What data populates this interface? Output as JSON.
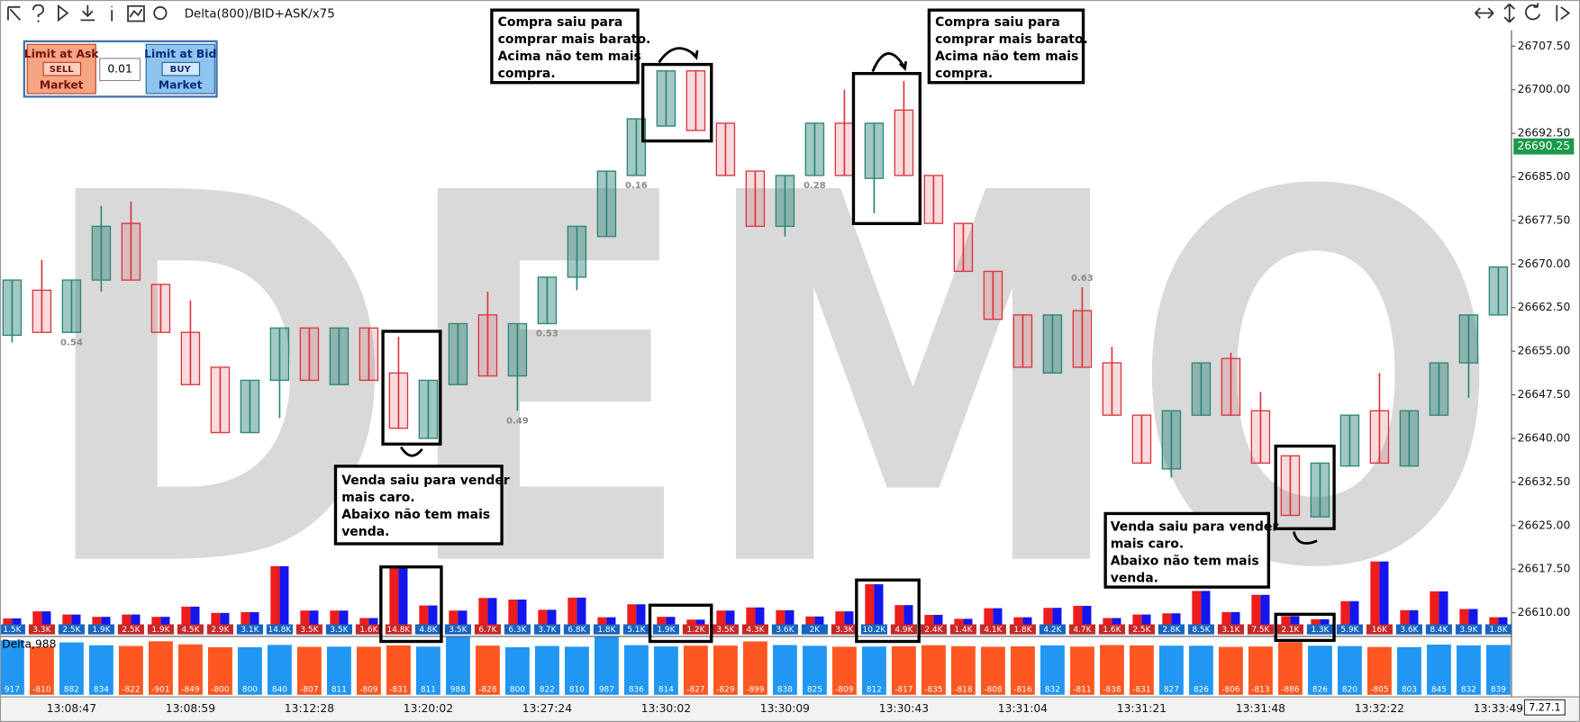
{
  "toolbar": {
    "title": "Delta(800)/BID+ASK/x75"
  },
  "order_panel": {
    "ask_label": "Limit at Ask",
    "sell": "SELL",
    "ask_market": "Market",
    "quantity": "0.01",
    "bid_label": "Limit at Bid",
    "buy": "BUY",
    "bid_market": "Market"
  },
  "watermark": "DEMO",
  "version": "7.27.1",
  "annotations": [
    {
      "lines": [
        "Compra saiu para",
        "comprar mais barato.",
        "Acima não tem mais",
        "compra."
      ]
    },
    {
      "lines": [
        "Compra saiu para",
        "comprar mais barato.",
        "Acima não tem mais",
        "compra."
      ]
    },
    {
      "lines": [
        "Venda saiu para vender",
        "mais caro.",
        "Abaixo não tem mais",
        "venda."
      ]
    },
    {
      "lines": [
        "Venda saiu para vender",
        "mais caro.",
        "Abaixo não tem mais",
        "venda."
      ]
    }
  ],
  "chart_data": [
    {
      "type": "candlestick",
      "categories": [
        null,
        null,
        "13:08:47",
        null,
        null,
        null,
        "13:08:59",
        null,
        null,
        null,
        "13:12:28",
        null,
        null,
        null,
        "13:20:02",
        null,
        null,
        null,
        "13:27:24",
        null,
        null,
        null,
        "13:30:02",
        null,
        null,
        null,
        "13:30:09",
        null,
        null,
        null,
        "13:30:43",
        null,
        null,
        null,
        "13:31:04",
        null,
        null,
        null,
        "13:31:21",
        null,
        null,
        null,
        "13:31:48",
        null,
        null,
        null,
        "13:32:22",
        null,
        null,
        null,
        "13:33:49"
      ],
      "open": [
        26657.75,
        26665.5,
        26658.25,
        26667.25,
        26677,
        26666.5,
        26658.25,
        26652.25,
        26641,
        26650,
        26659,
        26649.25,
        26659,
        26651.25,
        26640,
        26649.25,
        26661.25,
        26650.75,
        26659.75,
        26667.75,
        26674.75,
        26685.25,
        26693.75,
        26703.25,
        26694.25,
        26686,
        26676.5,
        26685.25,
        26694.25,
        26684.75,
        26696.5,
        26685.25,
        26677,
        26668.75,
        26661.25,
        26651.25,
        26662,
        26653,
        26644,
        26634.75,
        26644,
        26653.75,
        26644.75,
        26637,
        26626.5,
        26635.25,
        26644.75,
        26635.25,
        26644,
        26653,
        26661.25
      ],
      "high": [
        26667.25,
        26670.75,
        26667.25,
        26680,
        26680.75,
        26666.5,
        26663.75,
        26652.25,
        26650,
        26659,
        26659,
        26659,
        26659,
        26657.5,
        26650,
        26659.75,
        26665.25,
        26659.75,
        26667.75,
        26676.5,
        26686,
        26695,
        26703.25,
        26703.25,
        26694.25,
        26686,
        26685.25,
        26694.25,
        26700,
        26694.25,
        26701.5,
        26685.25,
        26677,
        26668.75,
        26661.25,
        26661.25,
        26666,
        26655.75,
        26644,
        26644.75,
        26653,
        26654.75,
        26648,
        26637,
        26635.75,
        26644,
        26651.25,
        26644.75,
        26653,
        26661.25,
        26669.5
      ],
      "low": [
        26656.5,
        26658.25,
        26658.25,
        26665.25,
        26667.25,
        26658.25,
        26649.25,
        26641,
        26641,
        26643.5,
        26650,
        26649.25,
        26650,
        26641.75,
        26640,
        26649.25,
        26650.75,
        26644.75,
        26659.75,
        26665.5,
        26674.75,
        26685.25,
        26693.75,
        26693,
        26685.25,
        26676.5,
        26674.75,
        26685.25,
        26685.25,
        26678.75,
        26685.25,
        26677,
        26668.75,
        26660.5,
        26652.25,
        26651.25,
        26652.25,
        26644,
        26635.75,
        26633.25,
        26644,
        26644,
        26635.75,
        26626.75,
        26626.5,
        26635.25,
        26635.75,
        26635.25,
        26644,
        26647,
        26661.25
      ],
      "close": [
        26667.25,
        26658.25,
        26667.25,
        26676.5,
        26667.25,
        26658.25,
        26649.25,
        26641,
        26650,
        26659,
        26650,
        26659,
        26650,
        26641.75,
        26650,
        26659.75,
        26650.75,
        26659.75,
        26667.75,
        26676.5,
        26686,
        26695,
        26703.25,
        26693,
        26685.25,
        26676.5,
        26685.25,
        26694.25,
        26685.25,
        26694.25,
        26685.25,
        26677,
        26668.75,
        26660.5,
        26652.25,
        26661.25,
        26652.25,
        26644,
        26635.75,
        26644.75,
        26653,
        26644,
        26635.75,
        26626.75,
        26635.75,
        26644,
        26635.75,
        26644.75,
        26653,
        26661.25,
        26669.5
      ],
      "ratios": [
        null,
        null,
        0.54,
        null,
        null,
        null,
        null,
        null,
        null,
        null,
        null,
        null,
        null,
        null,
        null,
        null,
        null,
        0.49,
        0.53,
        null,
        null,
        0.16,
        null,
        null,
        null,
        null,
        null,
        0.28,
        null,
        null,
        null,
        null,
        null,
        null,
        null,
        null,
        0.63,
        null,
        null,
        null,
        null,
        null,
        null,
        null,
        null,
        null,
        null,
        null,
        null,
        null,
        null
      ],
      "ylim": [
        26605.75,
        26710.25
      ],
      "yticks": [
        {
          "value": 26707.5,
          "label": "26707.50"
        },
        {
          "value": 26700,
          "label": "26700.00"
        },
        {
          "value": 26692.5,
          "label": "26692.50"
        },
        {
          "value": 26685,
          "label": "26685.00"
        },
        {
          "value": 26677.5,
          "label": "26677.50"
        },
        {
          "value": 26670,
          "label": "26670.00"
        },
        {
          "value": 26662.5,
          "label": "26662.50"
        },
        {
          "value": 26655,
          "label": "26655.00"
        },
        {
          "value": 26647.5,
          "label": "26647.50"
        },
        {
          "value": 26640,
          "label": "26640.00"
        },
        {
          "value": 26632.5,
          "label": "26632.50"
        },
        {
          "value": 26625,
          "label": "26625.00"
        },
        {
          "value": 26617.5,
          "label": "26617.50"
        },
        {
          "value": 26610,
          "label": "26610.00"
        }
      ],
      "last_price": 26690.25,
      "up_color": "#2e8577",
      "down_color": "#d9363e"
    },
    {
      "type": "bar",
      "values": [
        1500,
        3300,
        2500,
        1900,
        2500,
        1900,
        4500,
        2900,
        3100,
        14800,
        3500,
        3500,
        1600,
        14800,
        4800,
        3500,
        6700,
        6300,
        3700,
        6800,
        1800,
        5100,
        1900,
        1200,
        3500,
        4300,
        3600,
        2000,
        3300,
        10200,
        4900,
        2400,
        1400,
        4100,
        1800,
        4200,
        4700,
        1600,
        2500,
        2800,
        8500,
        3100,
        7500,
        2100,
        1300,
        5900,
        16000,
        3600,
        8400,
        3900,
        1800
      ],
      "value_labels": [
        "1.5K",
        "3.3K",
        "2.5K",
        "1.9K",
        "2.5K",
        "1.9K",
        "4.5K",
        "2.9K",
        "3.1K",
        "14.8K",
        "3.5K",
        "3.5K",
        "1.6K",
        "14.8K",
        "4.8K",
        "3.5K",
        "6.7K",
        "6.3K",
        "3.7K",
        "6.8K",
        "1.8K",
        "5.1K",
        "1.9K",
        "1.2K",
        "3.5K",
        "4.3K",
        "3.6K",
        "2K",
        "3.3K",
        "10.2K",
        "4.9K",
        "2.4K",
        "1.4K",
        "4.1K",
        "1.8K",
        "4.2K",
        "4.7K",
        "1.6K",
        "2.5K",
        "2.8K",
        "8.5K",
        "3.1K",
        "7.5K",
        "2.1K",
        "1.3K",
        "5.9K",
        "16K",
        "3.6K",
        "8.4K",
        "3.9K",
        "1.8K"
      ],
      "colors": [
        "#ee1c1c",
        "#1515ee"
      ]
    },
    {
      "type": "bar",
      "title": "Delta,988",
      "values": [
        917,
        -810,
        882,
        834,
        -822,
        -901,
        -849,
        -800,
        800,
        840,
        -807,
        811,
        -809,
        -831,
        811,
        988,
        -828,
        800,
        822,
        810,
        987,
        836,
        814,
        -827,
        -829,
        -899,
        838,
        825,
        -809,
        812,
        -817,
        -835,
        -818,
        -808,
        -816,
        832,
        -811,
        -838,
        -831,
        827,
        826,
        -806,
        -813,
        -886,
        826,
        820,
        -805,
        803,
        845,
        832,
        839
      ],
      "positive_color": "#2196f3",
      "negative_color": "#ff5722"
    }
  ]
}
